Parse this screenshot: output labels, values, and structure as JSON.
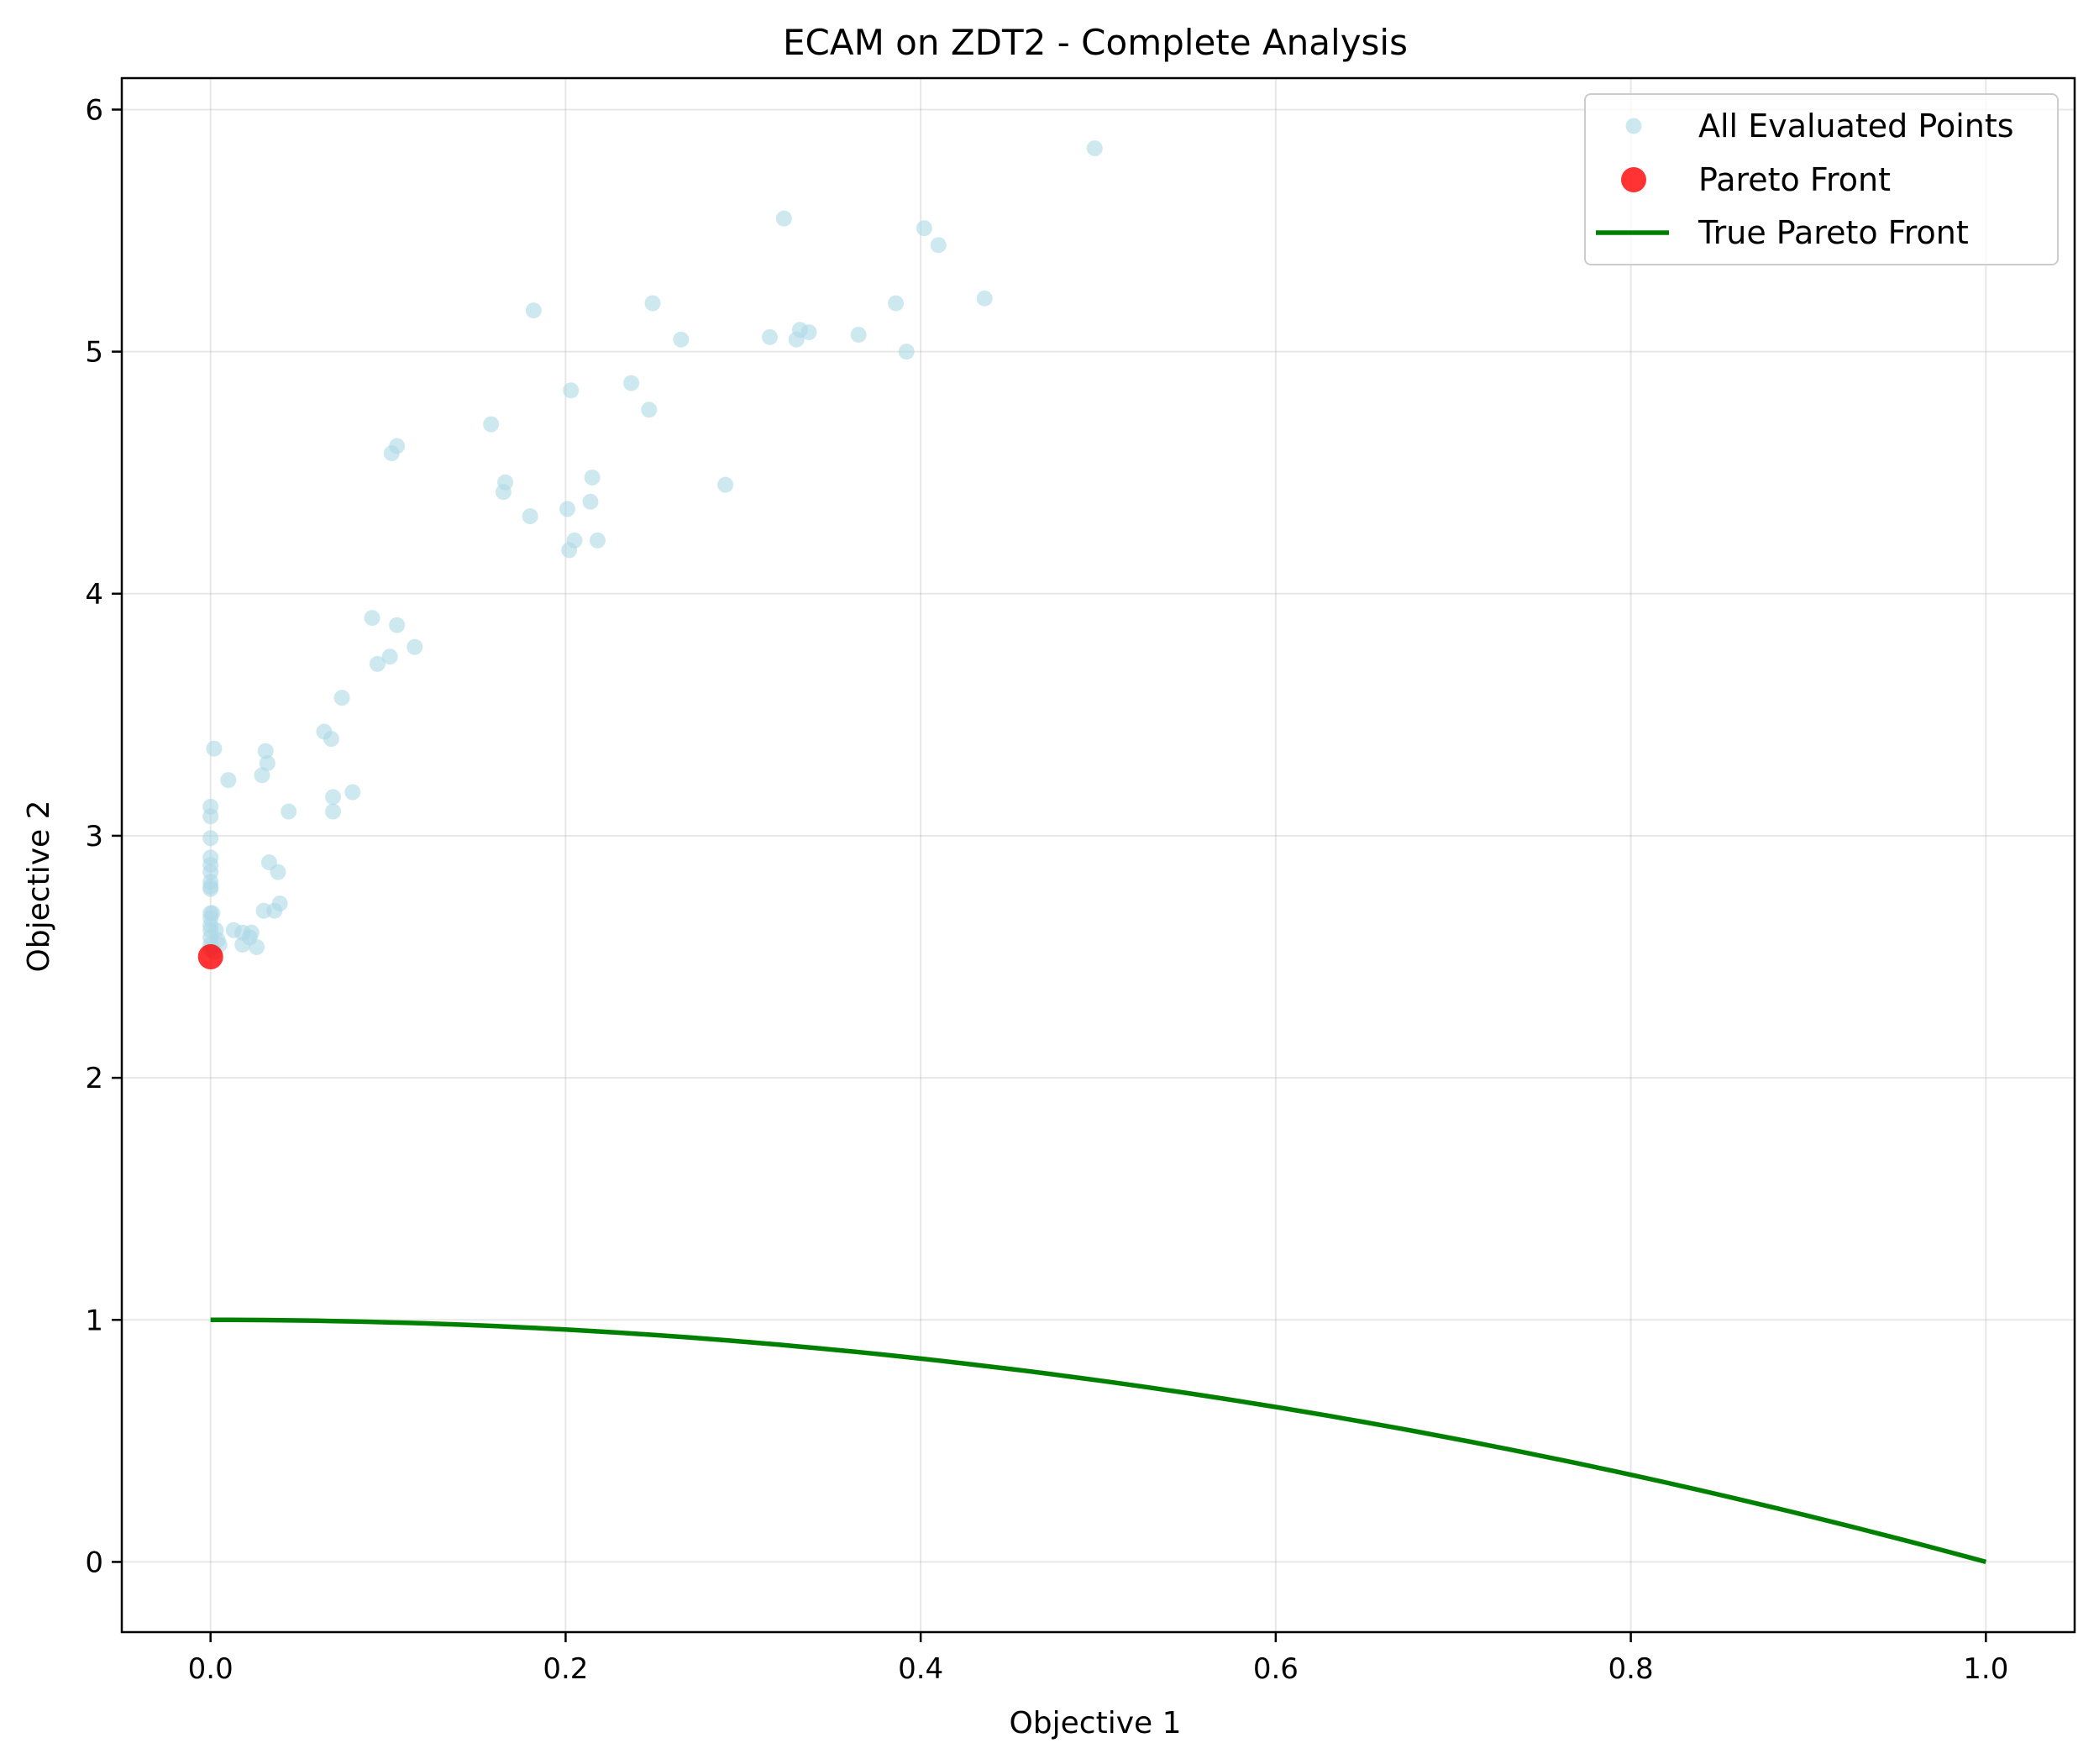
{
  "chart_data": {
    "type": "scatter",
    "title": "ECAM on ZDT2 - Complete Analysis",
    "xlabel": "Objective 1",
    "ylabel": "Objective 2",
    "xlim": [
      -0.05,
      1.05
    ],
    "ylim": [
      -0.29,
      6.13
    ],
    "xticks": [
      0.0,
      0.2,
      0.4,
      0.6,
      0.8,
      1.0
    ],
    "xtick_labels": [
      "0.0",
      "0.2",
      "0.4",
      "0.6",
      "0.8",
      "1.0"
    ],
    "yticks": [
      0,
      1,
      2,
      3,
      4,
      5,
      6
    ],
    "ytick_labels": [
      "0",
      "1",
      "2",
      "3",
      "4",
      "5",
      "6"
    ],
    "grid": true,
    "legend_position": "top-right",
    "series": [
      {
        "name": "All Evaluated Points",
        "kind": "scatter",
        "color": "#add8e6",
        "points": [
          [
            0.498,
            5.84
          ],
          [
            0.323,
            5.55
          ],
          [
            0.402,
            5.51
          ],
          [
            0.41,
            5.44
          ],
          [
            0.436,
            5.22
          ],
          [
            0.386,
            5.2
          ],
          [
            0.249,
            5.2
          ],
          [
            0.182,
            5.17
          ],
          [
            0.332,
            5.09
          ],
          [
            0.337,
            5.08
          ],
          [
            0.365,
            5.07
          ],
          [
            0.315,
            5.06
          ],
          [
            0.33,
            5.05
          ],
          [
            0.265,
            5.05
          ],
          [
            0.392,
            5.0
          ],
          [
            0.237,
            4.87
          ],
          [
            0.203,
            4.84
          ],
          [
            0.247,
            4.76
          ],
          [
            0.158,
            4.7
          ],
          [
            0.105,
            4.61
          ],
          [
            0.102,
            4.58
          ],
          [
            0.215,
            4.48
          ],
          [
            0.166,
            4.46
          ],
          [
            0.29,
            4.45
          ],
          [
            0.165,
            4.42
          ],
          [
            0.214,
            4.38
          ],
          [
            0.201,
            4.35
          ],
          [
            0.18,
            4.32
          ],
          [
            0.205,
            4.22
          ],
          [
            0.218,
            4.22
          ],
          [
            0.202,
            4.18
          ],
          [
            0.091,
            3.9
          ],
          [
            0.105,
            3.87
          ],
          [
            0.115,
            3.78
          ],
          [
            0.101,
            3.74
          ],
          [
            0.094,
            3.71
          ],
          [
            0.074,
            3.57
          ],
          [
            0.064,
            3.43
          ],
          [
            0.068,
            3.4
          ],
          [
            0.002,
            3.36
          ],
          [
            0.031,
            3.35
          ],
          [
            0.032,
            3.3
          ],
          [
            0.01,
            3.23
          ],
          [
            0.029,
            3.25
          ],
          [
            0.08,
            3.18
          ],
          [
            0.069,
            3.16
          ],
          [
            0.044,
            3.1
          ],
          [
            0.069,
            3.1
          ],
          [
            0.0,
            3.12
          ],
          [
            0.0,
            3.08
          ],
          [
            0.0,
            2.99
          ],
          [
            0.0,
            2.91
          ],
          [
            0.0,
            2.88
          ],
          [
            0.033,
            2.89
          ],
          [
            0.038,
            2.85
          ],
          [
            0.0,
            2.85
          ],
          [
            0.0,
            2.81
          ],
          [
            0.0,
            2.79
          ],
          [
            0.0,
            2.78
          ],
          [
            0.039,
            2.72
          ],
          [
            0.036,
            2.69
          ],
          [
            0.03,
            2.69
          ],
          [
            0.0,
            2.68
          ],
          [
            0.001,
            2.68
          ],
          [
            0.0,
            2.66
          ],
          [
            0.0,
            2.63
          ],
          [
            0.0,
            2.61
          ],
          [
            0.003,
            2.61
          ],
          [
            0.013,
            2.61
          ],
          [
            0.018,
            2.6
          ],
          [
            0.023,
            2.6
          ],
          [
            0.022,
            2.58
          ],
          [
            0.0,
            2.58
          ],
          [
            0.004,
            2.57
          ],
          [
            0.0,
            2.55
          ],
          [
            0.005,
            2.55
          ],
          [
            0.018,
            2.55
          ],
          [
            0.026,
            2.54
          ],
          [
            0.0,
            2.53
          ],
          [
            0.002,
            2.52
          ]
        ]
      },
      {
        "name": "Pareto Front",
        "kind": "scatter",
        "color": "#ff0000",
        "points": [
          [
            0.0,
            2.5
          ]
        ]
      },
      {
        "name": "True Pareto Front",
        "kind": "line",
        "color": "#008000",
        "function": "1 - x^2",
        "x_range": [
          0.0,
          1.0
        ]
      }
    ]
  }
}
